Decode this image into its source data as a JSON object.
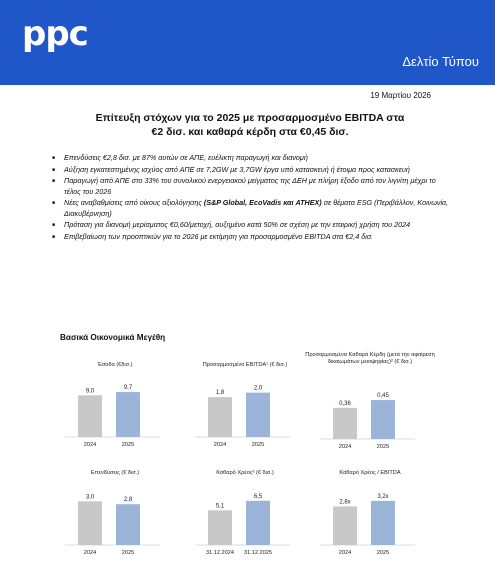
{
  "header": {
    "logo": "ppc",
    "press_label": "Δελτίο Τύπου"
  },
  "date": "19 Μαρτίου 2026",
  "title": {
    "line1": "Επίτευξη στόχων για το 2025 με προσαρμοσμένο EBITDA στα",
    "line2": "€2 δισ. και καθαρά κέρδη στα €0,45 δισ."
  },
  "bullets": [
    {
      "parts": [
        {
          "t": "Επενδύσεις €2,8 δισ. με 87% αυτών σε ΑΠΕ, ευέλικτη παραγωγή και διανομή",
          "b": false
        }
      ]
    },
    {
      "parts": [
        {
          "t": "Αύξηση εγκατεστημένης ισχύος από ΑΠΕ σε 7,2GW με 3,7GW έργα υπό κατασκευή ή έτοιμα προς κατασκευή",
          "b": false
        }
      ]
    },
    {
      "parts": [
        {
          "t": "Παραγωγή από ΑΠΕ στο 33% του συνολικού ενεργειακού μείγματος της ΔΕΗ με πλήρη έξοδο από τον λιγνίτη μέχρι το τέλος του 2026",
          "b": false
        }
      ]
    },
    {
      "parts": [
        {
          "t": "Νέες αναβαθμίσεις από οίκους αξιολόγησης ",
          "b": false
        },
        {
          "t": "(S&P Global, EcoVadis και ATHEX)",
          "b": true
        },
        {
          "t": " σε θέματα ESG (Περιβάλλον, Κοινωνία, Διακυβέρνηση)",
          "b": false
        }
      ]
    },
    {
      "parts": [
        {
          "t": "Πρόταση για διανομή μερίσματος €0,60/μετοχή, αυξημένο κατά 50% σε σχέση με την εταιρική χρήση του 2024",
          "b": false
        }
      ]
    },
    {
      "parts": [
        {
          "t": "Επιβεβαίωση των προοπτικών για το 2026 με εκτίμηση για προσαρμοσμένο EBITDA στα €2,4 δισ.",
          "b": false
        }
      ]
    }
  ],
  "section_title": "Βασικά Οικονομικά Μεγέθη",
  "chart_data": [
    {
      "type": "bar",
      "title": "Έσοδα (€δισ.)",
      "categories": [
        "2024",
        "2025"
      ],
      "values": [
        9.0,
        9.7
      ],
      "labels": [
        "9,0",
        "9,7"
      ],
      "ylim": [
        0,
        11
      ]
    },
    {
      "type": "bar",
      "title": "Προσαρμοσμένο EBITDA¹ (€ δισ.)",
      "categories": [
        "2024",
        "2025"
      ],
      "values": [
        1.8,
        2.0
      ],
      "labels": [
        "1,8",
        "2,0"
      ],
      "ylim": [
        0,
        2.3
      ]
    },
    {
      "type": "bar",
      "title": "Προσαρμοσμένα Καθαρά Κέρδη (μετά την αφαίρεση δικαιωμάτων μειοψηφίας)² (€ δισ.)",
      "categories": [
        "2024",
        "2025"
      ],
      "values": [
        0.36,
        0.45
      ],
      "labels": [
        "0,36",
        "0,45"
      ],
      "ylim": [
        0,
        0.52
      ]
    },
    {
      "type": "bar",
      "title": "Επενδύσεις (€ δισ.)",
      "categories": [
        "2024",
        "2025"
      ],
      "values": [
        3.0,
        2.8
      ],
      "labels": [
        "3,0",
        "2,8"
      ],
      "ylim": [
        0,
        3.5
      ]
    },
    {
      "type": "bar",
      "title": "Καθαρό Χρέος³ (€ δισ.)",
      "categories": [
        "31.12.2024",
        "31.12.2025"
      ],
      "values": [
        5.1,
        6.5
      ],
      "labels": [
        "5,1",
        "6,5"
      ],
      "ylim": [
        0,
        7.5
      ]
    },
    {
      "type": "bar",
      "title": "Καθαρό Χρέος / EBITDA",
      "categories": [
        "2024",
        "2025"
      ],
      "values": [
        2.8,
        3.2
      ],
      "labels": [
        "2,8x",
        "3,2x"
      ],
      "ylim": [
        0,
        3.7
      ]
    }
  ],
  "colors": {
    "brand_blue": "#1f57c9",
    "bar_2024": "#c8c8c8",
    "bar_2025": "#9cb4d8"
  }
}
